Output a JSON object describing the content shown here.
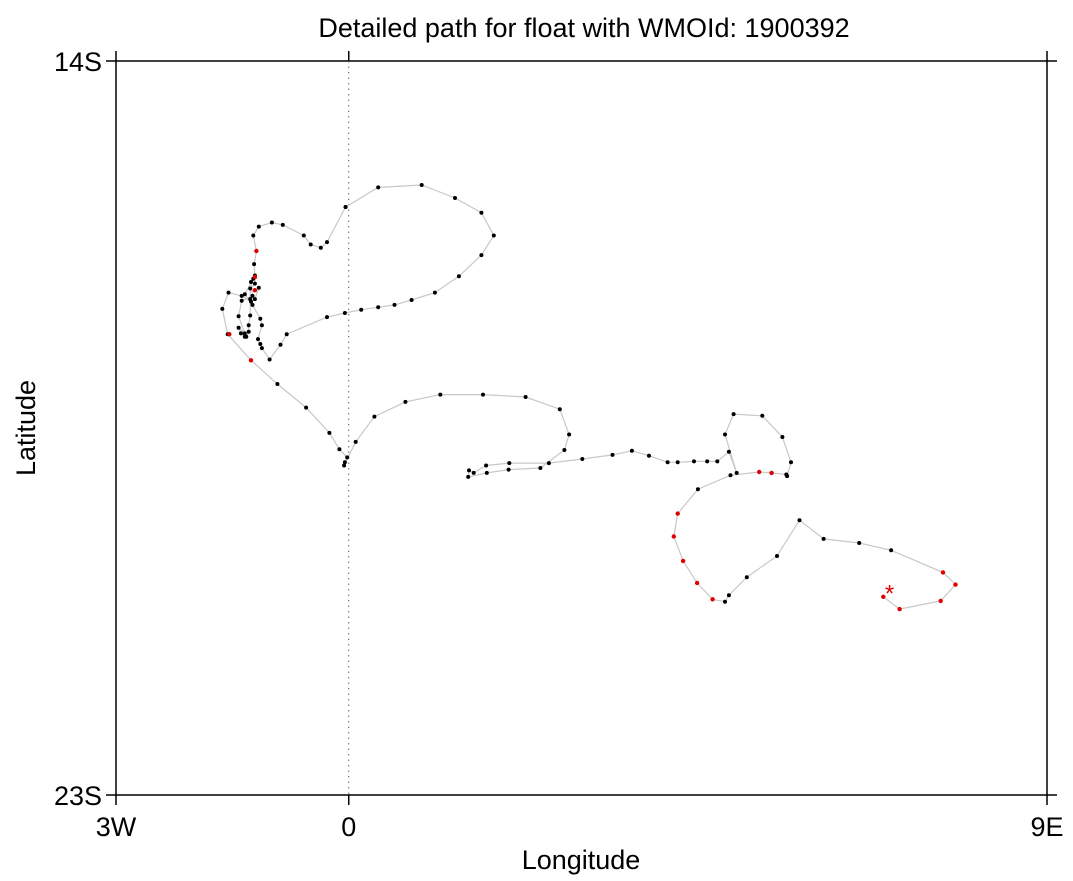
{
  "chart_data": {
    "type": "scatter",
    "title": "Detailed path for float with WMOId: 1900392",
    "xlabel": "Longitude",
    "ylabel": "Latitude",
    "xlim": [
      -3,
      9
    ],
    "ylim": [
      -23,
      -14
    ],
    "x_ticks": [
      {
        "value": -3,
        "label": "3W"
      },
      {
        "value": 0,
        "label": "0"
      },
      {
        "value": 9,
        "label": "9E"
      }
    ],
    "y_ticks": [
      {
        "value": -14,
        "label": "14S"
      },
      {
        "value": -23,
        "label": "23S"
      }
    ],
    "reference_line": {
      "x": 0,
      "style": "dotted"
    },
    "grid": false,
    "legend": "none",
    "colors": {
      "path": "#c8c8c8",
      "profile": "#000000",
      "highlight": "#e00000",
      "frame": "#000000"
    },
    "path": [
      [
        -0.04,
        -15.79
      ],
      [
        0.38,
        -15.55
      ],
      [
        0.94,
        -15.52
      ],
      [
        1.37,
        -15.68
      ],
      [
        1.71,
        -15.86
      ],
      [
        1.87,
        -16.14
      ],
      [
        1.71,
        -16.38
      ],
      [
        1.42,
        -16.64
      ],
      [
        1.11,
        -16.84
      ],
      [
        0.81,
        -16.93
      ],
      [
        0.59,
        -16.99
      ],
      [
        0.38,
        -17.02
      ],
      [
        0.16,
        -17.05
      ],
      [
        -0.05,
        -17.09
      ],
      [
        -0.28,
        -17.14
      ],
      [
        -0.8,
        -17.35
      ],
      [
        -0.88,
        -17.48
      ],
      [
        -1.02,
        -17.66
      ],
      [
        -1.12,
        -17.52
      ],
      [
        -1.14,
        -17.47
      ],
      [
        -1.17,
        -17.41
      ],
      [
        -1.12,
        -17.24
      ],
      [
        -1.14,
        -17.16
      ],
      [
        -1.24,
        -16.99
      ],
      [
        -1.34,
        -16.86
      ],
      [
        -1.23,
        -16.67
      ],
      [
        -1.26,
        -16.71
      ],
      [
        -1.24,
        -16.88
      ],
      [
        -1.38,
        -16.94
      ],
      [
        -1.42,
        -17.13
      ],
      [
        -1.34,
        -17.34
      ],
      [
        -1.42,
        -17.27
      ],
      [
        -1.39,
        -17.34
      ],
      [
        -1.34,
        -17.38
      ],
      [
        -1.32,
        -17.38
      ],
      [
        -1.29,
        -17.32
      ],
      [
        -1.29,
        -17.24
      ],
      [
        -1.27,
        -17.12
      ],
      [
        -1.27,
        -16.92
      ],
      [
        -1.27,
        -16.79
      ],
      [
        -1.21,
        -16.73
      ],
      [
        -1.21,
        -16.63
      ],
      [
        -1.22,
        -16.49
      ],
      [
        -1.19,
        -16.33
      ],
      [
        -1.23,
        -16.14
      ],
      [
        -1.16,
        -16.03
      ],
      [
        -0.99,
        -15.98
      ],
      [
        -0.85,
        -16.01
      ],
      [
        -0.58,
        -16.14
      ],
      [
        -0.49,
        -16.25
      ],
      [
        -0.36,
        -16.29
      ],
      [
        -0.28,
        -16.22
      ],
      [
        -0.04,
        -15.79
      ]
    ],
    "path2": [
      [
        -1.16,
        -16.78
      ],
      [
        -1.21,
        -16.92
      ],
      [
        -1.26,
        -16.95
      ],
      [
        -1.38,
        -16.88
      ],
      [
        -1.55,
        -16.84
      ],
      [
        -1.63,
        -17.04
      ],
      [
        -1.56,
        -17.35
      ],
      [
        -1.26,
        -17.67
      ],
      [
        -0.92,
        -17.96
      ],
      [
        -0.55,
        -18.25
      ],
      [
        -0.25,
        -18.56
      ],
      [
        -0.12,
        -18.76
      ],
      [
        -0.02,
        -18.86
      ],
      [
        -0.05,
        -18.92
      ],
      [
        -0.06,
        -18.96
      ],
      [
        0.09,
        -18.67
      ],
      [
        0.33,
        -18.36
      ],
      [
        0.73,
        -18.18
      ],
      [
        1.18,
        -18.09
      ],
      [
        1.73,
        -18.09
      ],
      [
        2.28,
        -18.12
      ],
      [
        2.72,
        -18.27
      ],
      [
        2.84,
        -18.58
      ],
      [
        2.78,
        -18.77
      ],
      [
        2.47,
        -18.99
      ],
      [
        2.06,
        -19.01
      ],
      [
        1.78,
        -19.05
      ],
      [
        1.54,
        -19.1
      ],
      [
        1.55,
        -19.02
      ],
      [
        1.61,
        -19.05
      ],
      [
        1.77,
        -18.96
      ],
      [
        2.07,
        -18.93
      ],
      [
        2.58,
        -18.93
      ],
      [
        3.01,
        -18.88
      ],
      [
        3.4,
        -18.83
      ],
      [
        3.65,
        -18.78
      ],
      [
        3.87,
        -18.84
      ],
      [
        4.11,
        -18.92
      ],
      [
        4.24,
        -18.92
      ],
      [
        4.45,
        -18.91
      ],
      [
        4.62,
        -18.91
      ],
      [
        4.75,
        -18.91
      ],
      [
        4.9,
        -18.79
      ],
      [
        5.0,
        -19.05
      ],
      [
        4.85,
        -18.58
      ],
      [
        4.96,
        -18.33
      ],
      [
        5.33,
        -18.35
      ],
      [
        5.59,
        -18.61
      ],
      [
        5.7,
        -18.92
      ],
      [
        5.65,
        -19.09
      ],
      [
        5.64,
        -19.07
      ],
      [
        5.45,
        -19.05
      ],
      [
        5.29,
        -19.04
      ],
      [
        4.92,
        -19.08
      ],
      [
        4.5,
        -19.25
      ],
      [
        4.24,
        -19.55
      ],
      [
        4.19,
        -19.83
      ],
      [
        4.31,
        -20.13
      ],
      [
        4.49,
        -20.4
      ],
      [
        4.69,
        -20.6
      ],
      [
        4.85,
        -20.63
      ],
      [
        4.9,
        -20.55
      ],
      [
        5.13,
        -20.33
      ],
      [
        5.52,
        -20.07
      ],
      [
        5.81,
        -19.63
      ],
      [
        6.12,
        -19.86
      ],
      [
        6.58,
        -19.91
      ],
      [
        6.99,
        -20.0
      ],
      [
        7.66,
        -20.27
      ],
      [
        7.82,
        -20.42
      ],
      [
        7.63,
        -20.62
      ],
      [
        7.1,
        -20.72
      ],
      [
        6.89,
        -20.57
      ]
    ],
    "highlighted_points": [
      [
        -1.19,
        -16.33
      ],
      [
        -1.21,
        -16.81
      ],
      [
        -1.21,
        -16.65
      ],
      [
        -1.54,
        -17.35
      ],
      [
        -1.26,
        -17.67
      ],
      [
        5.29,
        -19.04
      ],
      [
        5.45,
        -19.05
      ],
      [
        4.24,
        -19.55
      ],
      [
        4.19,
        -19.83
      ],
      [
        4.31,
        -20.13
      ],
      [
        4.49,
        -20.4
      ],
      [
        4.69,
        -20.6
      ],
      [
        7.66,
        -20.27
      ],
      [
        7.82,
        -20.42
      ],
      [
        7.63,
        -20.62
      ],
      [
        7.1,
        -20.72
      ],
      [
        6.89,
        -20.57
      ]
    ],
    "last_position": {
      "x": 6.97,
      "y": -20.49,
      "marker": "*"
    }
  }
}
